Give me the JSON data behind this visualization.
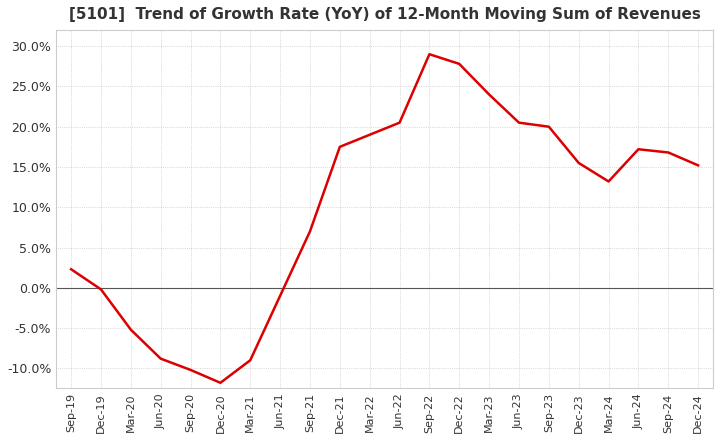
{
  "title": "[5101]  Trend of Growth Rate (YoY) of 12-Month Moving Sum of Revenues",
  "title_fontsize": 11,
  "background_color": "#ffffff",
  "plot_bg_color": "#ffffff",
  "grid_color": "#aaaaaa",
  "line_color": "#dd0000",
  "ylim": [
    -0.125,
    0.32
  ],
  "yticks": [
    -0.1,
    -0.05,
    0.0,
    0.05,
    0.1,
    0.15,
    0.2,
    0.25,
    0.3
  ],
  "x_labels": [
    "Sep-19",
    "Dec-19",
    "Mar-20",
    "Jun-20",
    "Sep-20",
    "Dec-20",
    "Mar-21",
    "Jun-21",
    "Sep-21",
    "Dec-21",
    "Mar-22",
    "Jun-22",
    "Sep-22",
    "Dec-22",
    "Mar-23",
    "Jun-23",
    "Sep-23",
    "Dec-23",
    "Mar-24",
    "Jun-24",
    "Sep-24",
    "Dec-24"
  ],
  "values": [
    0.023,
    -0.002,
    -0.052,
    -0.088,
    -0.102,
    -0.118,
    -0.09,
    -0.01,
    0.07,
    0.175,
    0.19,
    0.205,
    0.29,
    0.278,
    0.24,
    0.205,
    0.2,
    0.155,
    0.132,
    0.172,
    0.168,
    0.152
  ]
}
